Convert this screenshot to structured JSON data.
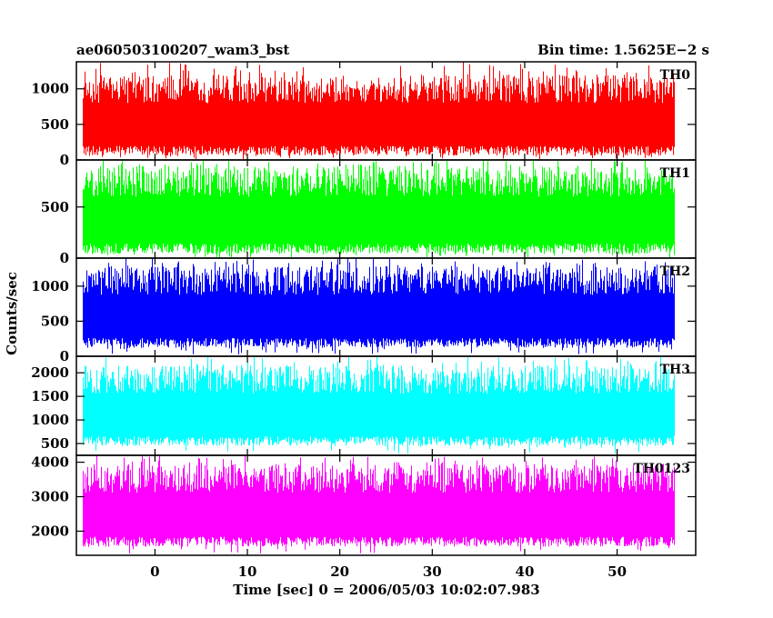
{
  "chart_data": {
    "type": "line",
    "title_left": "ae060503100207_wam3_bst",
    "title_right": "Bin time: 1.5625E−2 s",
    "xlabel": "Time [sec] 0 = 2006/05/03 10:02:07.983",
    "ylabel": "Counts/sec",
    "xlim": [
      -8.5,
      58.5
    ],
    "x_data_range": [
      -7.8,
      56.1
    ],
    "bin_time": 0.015625,
    "x_ticks": [
      0,
      10,
      20,
      30,
      40,
      50
    ],
    "grid": false,
    "panels": [
      {
        "name": "TH0",
        "color": "#ff0000",
        "ylim": [
          0,
          1380
        ],
        "y_ticks": [
          0,
          500,
          1000
        ],
        "typical_min": 60,
        "typical_max": 1200,
        "peak": 1380
      },
      {
        "name": "TH1",
        "color": "#00ff00",
        "ylim": [
          0,
          960
        ],
        "y_ticks": [
          0,
          500
        ],
        "typical_min": 40,
        "typical_max": 900,
        "peak": 960
      },
      {
        "name": "TH2",
        "color": "#0000ff",
        "ylim": [
          0,
          1400
        ],
        "y_ticks": [
          0,
          500,
          1000
        ],
        "typical_min": 120,
        "typical_max": 1280,
        "peak": 1400
      },
      {
        "name": "TH3",
        "color": "#00ffff",
        "ylim": [
          250,
          2350
        ],
        "y_ticks": [
          500,
          1000,
          1500,
          2000
        ],
        "typical_min": 450,
        "typical_max": 2150,
        "peak": 2350
      },
      {
        "name": "TH0123",
        "color": "#ff00ff",
        "ylim": [
          1300,
          4200
        ],
        "y_ticks": [
          2000,
          3000,
          4000
        ],
        "typical_min": 1550,
        "typical_max": 3950,
        "peak": 4200
      }
    ]
  }
}
